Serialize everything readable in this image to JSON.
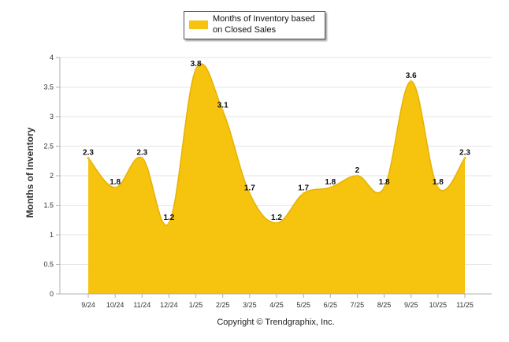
{
  "chart_data": {
    "type": "area",
    "categories": [
      "9/24",
      "10/24",
      "11/24",
      "12/24",
      "1/25",
      "2/25",
      "3/25",
      "4/25",
      "5/25",
      "6/25",
      "7/25",
      "8/25",
      "9/25",
      "10/25",
      "11/25"
    ],
    "series": [
      {
        "name": "Months of Inventory based on Closed Sales",
        "values": [
          2.3,
          1.8,
          2.3,
          1.2,
          3.8,
          3.1,
          1.7,
          1.2,
          1.7,
          1.8,
          2,
          1.8,
          3.6,
          1.8,
          2.3
        ]
      }
    ],
    "data_labels": [
      "2.3",
      "1.8",
      "2.3",
      "1.2",
      "3.8",
      "3.1",
      "1.7",
      "1.2",
      "1.7",
      "1.8",
      "2",
      "1.8",
      "3.6",
      "1.8",
      "2.3"
    ],
    "ylabel": "Months of Inventory",
    "xlabel": "",
    "ylim": [
      0,
      4
    ],
    "yticks": [
      0,
      0.5,
      1,
      1.5,
      2,
      2.5,
      3,
      3.5,
      4
    ],
    "ytick_labels": [
      "0",
      "0.5",
      "1",
      "1.5",
      "2",
      "2.5",
      "3",
      "3.5",
      "4"
    ],
    "legend": "top-center",
    "grid": true,
    "colors": {
      "fill": "#f6c30f",
      "grid": "#e4e4e4",
      "axis": "#b0b0b0"
    }
  },
  "legend": {
    "label": "Months of Inventory based on Closed Sales"
  },
  "footer": {
    "copyright": "Copyright © Trendgraphix, Inc."
  }
}
